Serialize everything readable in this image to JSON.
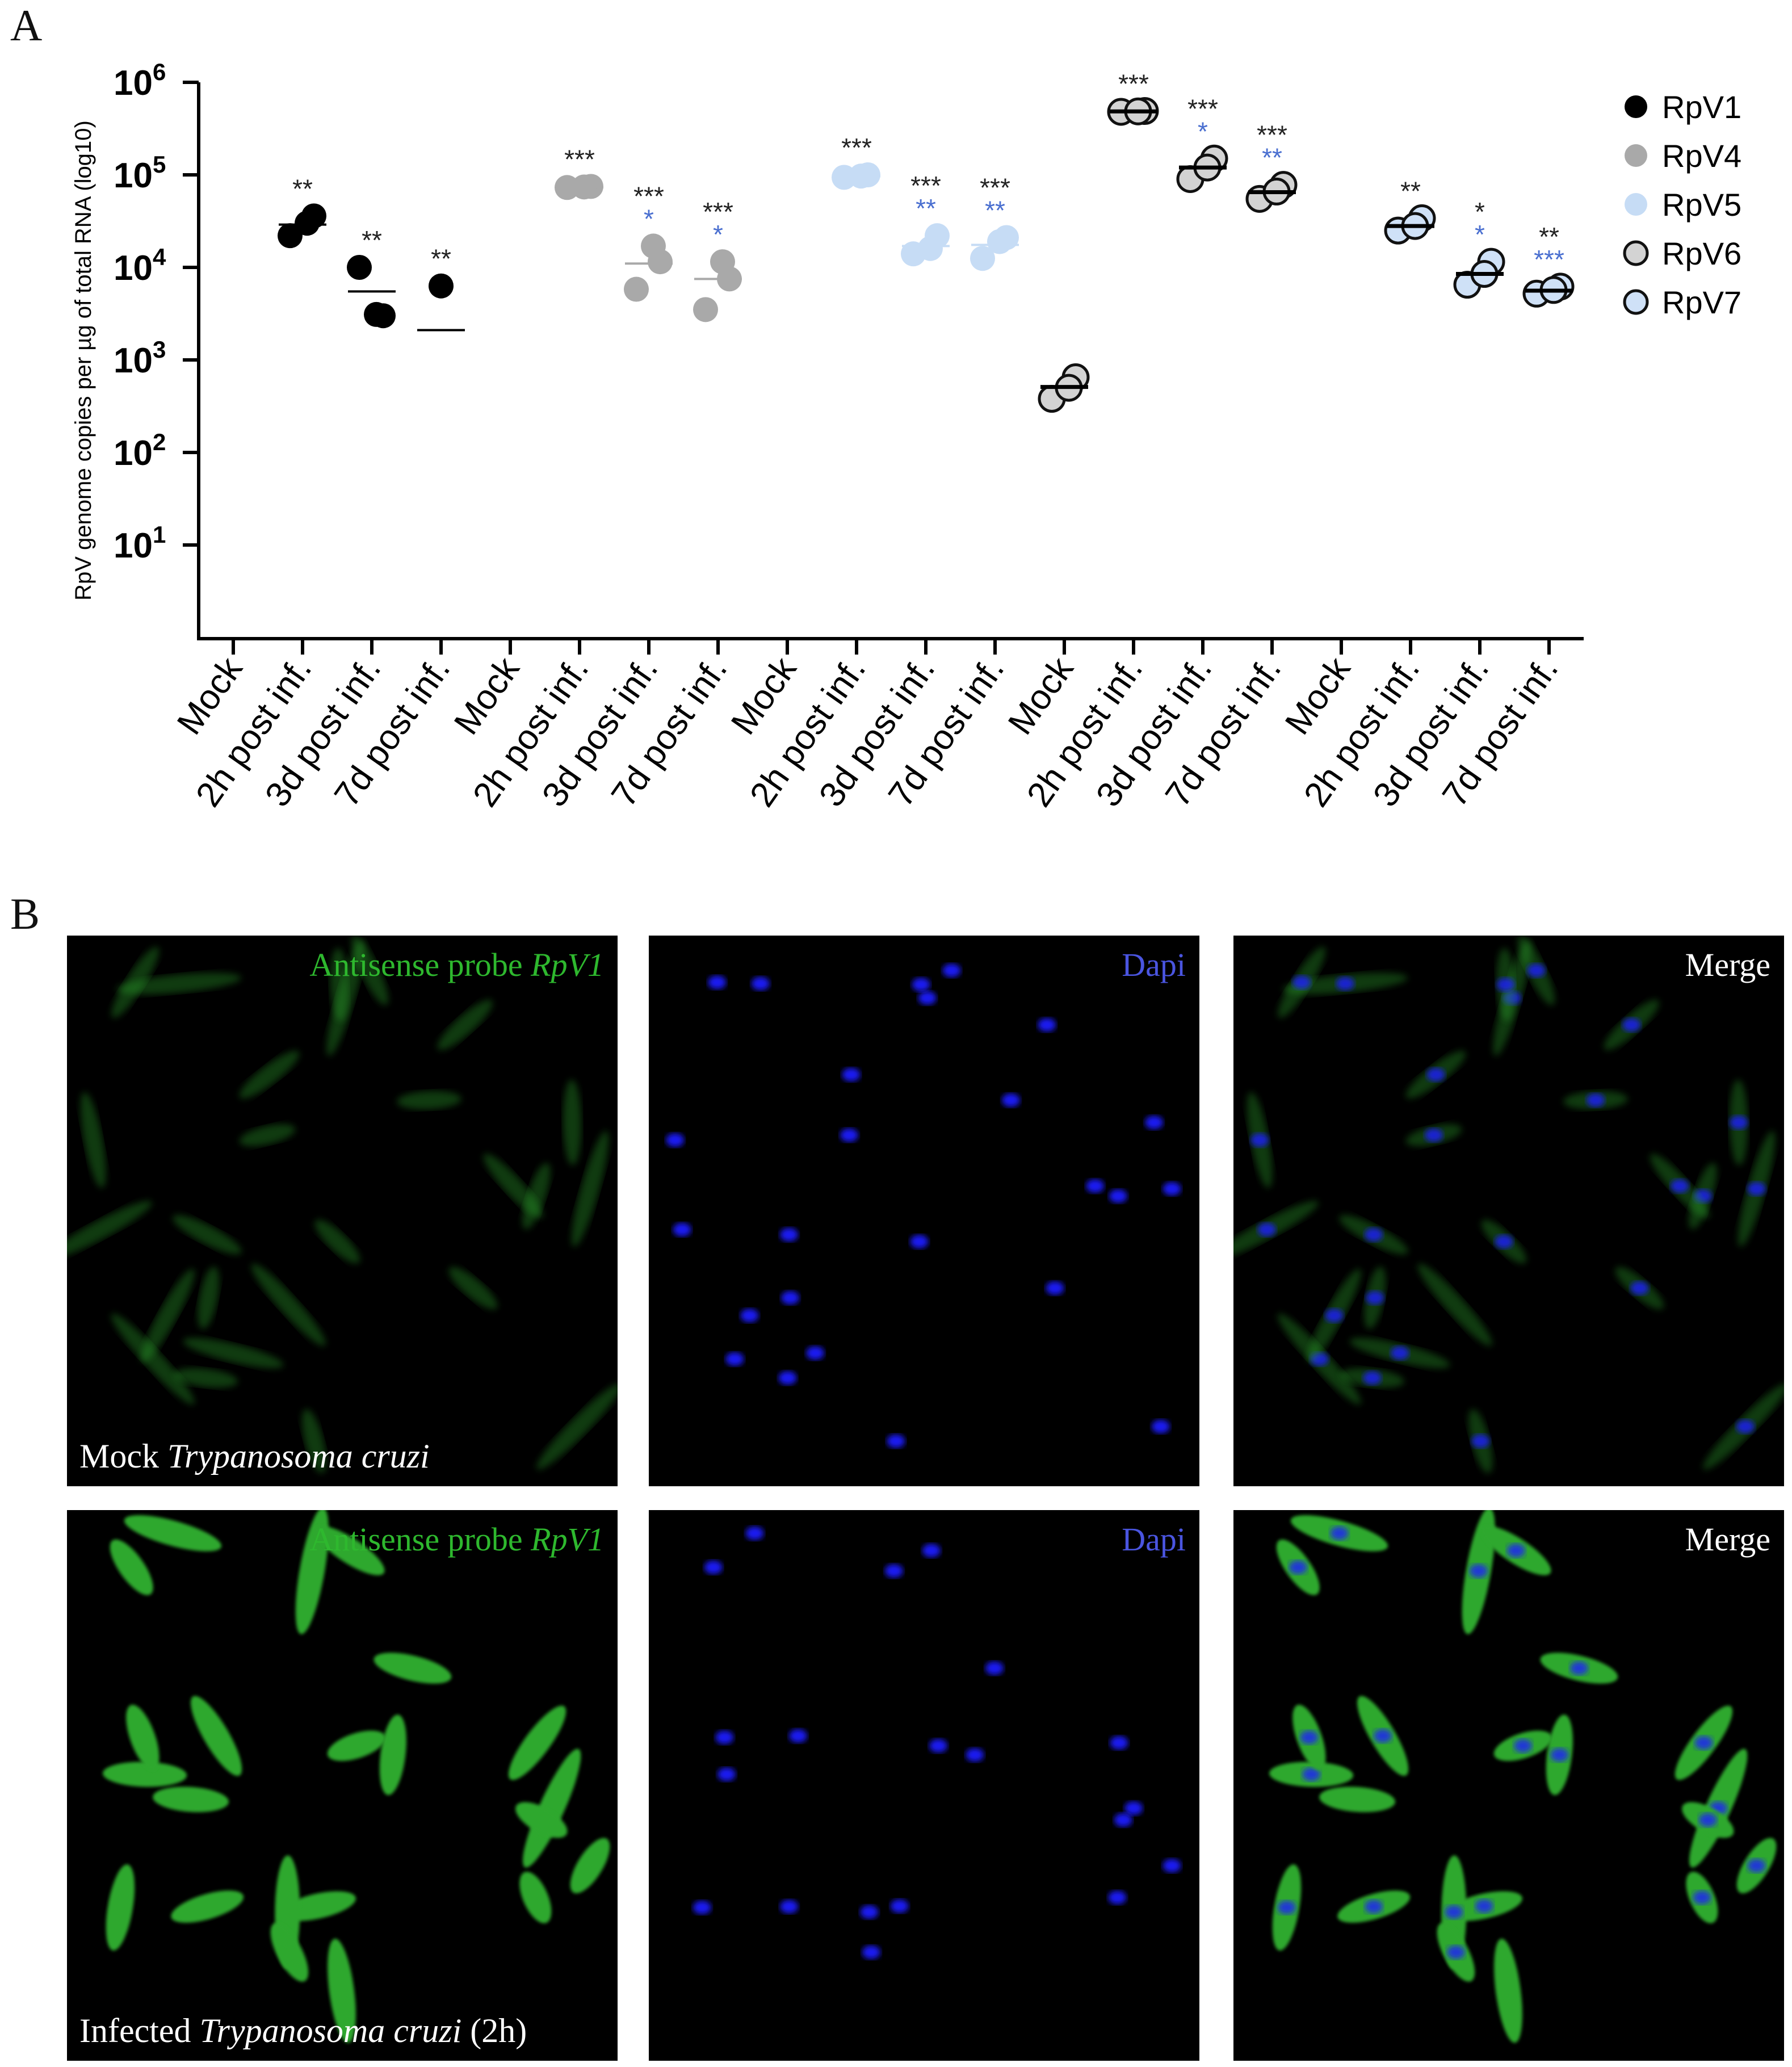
{
  "panel_a": {
    "label": "A",
    "chart_data": {
      "type": "scatter",
      "ylabel": "RpV genome copies per µg of total RNA (log10)",
      "yscale": "log",
      "ylim": [
        1,
        1000000
      ],
      "yticks": [
        {
          "value": 10,
          "base": "10",
          "exp": "1"
        },
        {
          "value": 100,
          "base": "10",
          "exp": "2"
        },
        {
          "value": 1000,
          "base": "10",
          "exp": "3"
        },
        {
          "value": 10000,
          "base": "10",
          "exp": "4"
        },
        {
          "value": 100000,
          "base": "10",
          "exp": "5"
        },
        {
          "value": 1000000,
          "base": "10",
          "exp": "6"
        }
      ],
      "categories": [
        "Mock",
        "2h post inf.",
        "3d post inf.",
        "7d post inf.",
        "Mock",
        "2h post inf.",
        "3d post inf.",
        "7d post inf.",
        "Mock",
        "2h post inf.",
        "3d post inf.",
        "7d post inf.",
        "Mock",
        "2h post inf.",
        "3d post inf.",
        "7d post inf.",
        "Mock",
        "2h post inf.",
        "3d post inf.",
        "7d post inf."
      ],
      "legend": {
        "position": "top-right"
      },
      "series": [
        {
          "name": "RpV1",
          "color": "#000000",
          "outline": false,
          "groups": [
            {
              "category_index": 0,
              "points": [],
              "mean": null,
              "sig_black": "",
              "sig_blue": ""
            },
            {
              "category_index": 1,
              "points": [
                22000,
                36000,
                30000
              ],
              "mean": 29000,
              "sig_black": "**",
              "sig_blue": ""
            },
            {
              "category_index": 2,
              "points": [
                10000,
                3000,
                3100
              ],
              "mean": 5500,
              "sig_black": "**",
              "sig_blue": ""
            },
            {
              "category_index": 3,
              "points": [
                6300
              ],
              "mean": 2100,
              "sig_black": "**",
              "sig_blue": ""
            }
          ]
        },
        {
          "name": "RpV4",
          "color": "#a9a9a9",
          "outline": false,
          "groups": [
            {
              "category_index": 4,
              "points": [],
              "mean": null,
              "sig_black": "",
              "sig_blue": ""
            },
            {
              "category_index": 5,
              "points": [
                73000,
                75000,
                74000
              ],
              "mean": 74000,
              "sig_black": "***",
              "sig_blue": ""
            },
            {
              "category_index": 6,
              "points": [
                5800,
                11500,
                17000
              ],
              "mean": 11000,
              "sig_black": "***",
              "sig_blue": "*"
            },
            {
              "category_index": 7,
              "points": [
                3500,
                7500,
                11500
              ],
              "mean": 7500,
              "sig_black": "***",
              "sig_blue": "*"
            }
          ]
        },
        {
          "name": "RpV5",
          "color": "#c6dcf5",
          "outline": false,
          "groups": [
            {
              "category_index": 8,
              "points": [],
              "mean": null,
              "sig_black": "",
              "sig_blue": ""
            },
            {
              "category_index": 9,
              "points": [
                94000,
                100000,
                97000
              ],
              "mean": 97000,
              "sig_black": "***",
              "sig_blue": ""
            },
            {
              "category_index": 10,
              "points": [
                14000,
                22000,
                16000
              ],
              "mean": 17000,
              "sig_black": "***",
              "sig_blue": "**"
            },
            {
              "category_index": 11,
              "points": [
                12500,
                21000,
                19000
              ],
              "mean": 17500,
              "sig_black": "***",
              "sig_blue": "**"
            }
          ]
        },
        {
          "name": "RpV6",
          "color": "#d3d3d3",
          "outline": true,
          "groups": [
            {
              "category_index": 12,
              "points": [
                380,
                650,
                500
              ],
              "mean": 510,
              "sig_black": "",
              "sig_blue": ""
            },
            {
              "category_index": 13,
              "points": [
                480000,
                490000,
                485000
              ],
              "mean": 485000,
              "sig_black": "***",
              "sig_blue": ""
            },
            {
              "category_index": 14,
              "points": [
                90000,
                150000,
                120000
              ],
              "mean": 120000,
              "sig_black": "***",
              "sig_blue": "*"
            },
            {
              "category_index": 15,
              "points": [
                55000,
                78000,
                66000
              ],
              "mean": 65000,
              "sig_black": "***",
              "sig_blue": "**"
            }
          ]
        },
        {
          "name": "RpV7",
          "color": "#cfe1f7",
          "outline": true,
          "groups": [
            {
              "category_index": 16,
              "points": [],
              "mean": null,
              "sig_black": "",
              "sig_blue": ""
            },
            {
              "category_index": 17,
              "points": [
                25000,
                34000,
                28000
              ],
              "mean": 28000,
              "sig_black": "**",
              "sig_blue": ""
            },
            {
              "category_index": 18,
              "points": [
                6500,
                11500,
                8500
              ],
              "mean": 8500,
              "sig_black": "*",
              "sig_blue": "*"
            },
            {
              "category_index": 19,
              "points": [
                5200,
                6200,
                5700
              ],
              "mean": 5600,
              "sig_black": "**",
              "sig_blue": "***"
            }
          ]
        }
      ]
    }
  },
  "panel_b": {
    "label": "B",
    "rows": [
      {
        "caption_plain": "Mock ",
        "caption_italic": "Trypanosoma cruzi",
        "caption_suffix": "",
        "green_intensity": 0.35
      },
      {
        "caption_plain": "Infected ",
        "caption_italic": "Trypanosoma cruzi",
        "caption_suffix": " (2h)",
        "green_intensity": 1.0
      }
    ],
    "columns": [
      {
        "title_plain": "Antisense probe ",
        "title_italic": "RpV1",
        "color": "#2eb82e"
      },
      {
        "title_plain": "Dapi",
        "title_italic": "",
        "color": "#4a55e0"
      },
      {
        "title_plain": "Merge",
        "title_italic": "",
        "color": "#ffffff"
      }
    ],
    "colors": {
      "green": "#2ea82e",
      "blue": "#1d1dff",
      "background": "#000000"
    }
  }
}
